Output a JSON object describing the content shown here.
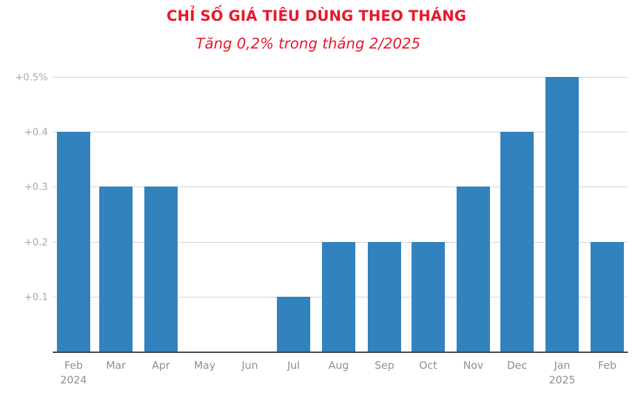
{
  "header": {
    "title": "CHỈ SỐ GIÁ TIÊU DÙNG THEO THÁNG",
    "subtitle": "Tăng 0,2% trong tháng 2/2025"
  },
  "colors": {
    "title": "#e8192c",
    "bar": "#3282be",
    "grid": "#d3d3d3",
    "axis_text": "#a8a8a8"
  },
  "y_axis": {
    "ticks": [
      "+0.5%",
      "+0.4",
      "+0.3",
      "+0.2",
      "+0.1"
    ]
  },
  "x_axis": {
    "labels": [
      {
        "month": "Feb",
        "year": "2024"
      },
      {
        "month": "Mar",
        "year": ""
      },
      {
        "month": "Apr",
        "year": ""
      },
      {
        "month": "May",
        "year": ""
      },
      {
        "month": "Jun",
        "year": ""
      },
      {
        "month": "Jul",
        "year": ""
      },
      {
        "month": "Aug",
        "year": ""
      },
      {
        "month": "Sep",
        "year": ""
      },
      {
        "month": "Oct",
        "year": ""
      },
      {
        "month": "Nov",
        "year": ""
      },
      {
        "month": "Dec",
        "year": ""
      },
      {
        "month": "Jan",
        "year": "2025"
      },
      {
        "month": "Feb",
        "year": ""
      }
    ]
  },
  "chart_data": {
    "type": "bar",
    "title": "CHỈ SỐ GIÁ TIÊU DÙNG THEO THÁNG",
    "subtitle": "Tăng 0,2% trong tháng 2/2025",
    "categories": [
      "Feb 2024",
      "Mar",
      "Apr",
      "May",
      "Jun",
      "Jul",
      "Aug",
      "Sep",
      "Oct",
      "Nov",
      "Dec",
      "Jan 2025",
      "Feb"
    ],
    "values": [
      0.4,
      0.3,
      0.3,
      0.0,
      0.0,
      0.1,
      0.2,
      0.2,
      0.2,
      0.3,
      0.4,
      0.5,
      0.2
    ],
    "xlabel": "",
    "ylabel": "%",
    "ylim": [
      0,
      0.5
    ],
    "yticks": [
      "+0.1",
      "+0.2",
      "+0.3",
      "+0.4",
      "+0.5%"
    ],
    "grid": true,
    "legend": null
  }
}
